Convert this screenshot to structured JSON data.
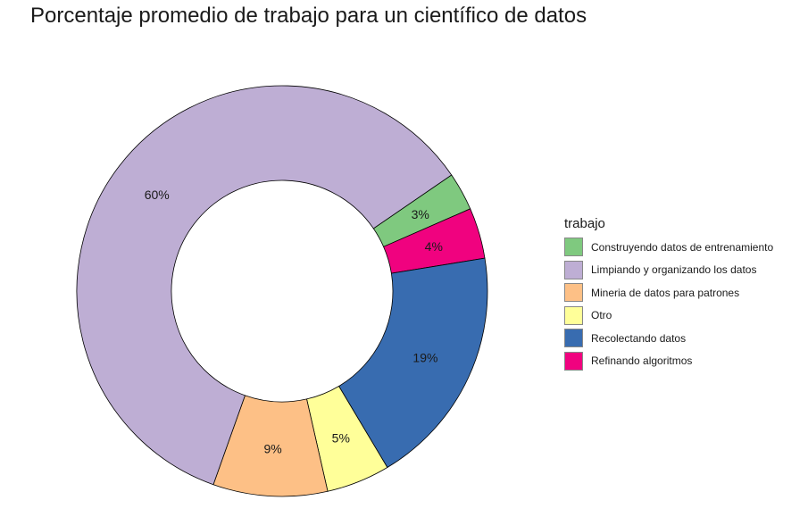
{
  "chart_data": {
    "type": "pie",
    "variant": "donut",
    "title": "Porcentaje promedio de trabajo para un científico de datos",
    "legend_title": "trabajo",
    "legend_position": "right",
    "categories": [
      "Construyendo datos de entrenamiento",
      "Limpiando y organizando los datos",
      "Mineria de datos para patrones",
      "Otro",
      "Recolectando datos",
      "Refinando algoritmos"
    ],
    "values": [
      3,
      60,
      9,
      5,
      19,
      4
    ],
    "labels": [
      "3%",
      "60%",
      "9%",
      "5%",
      "19%",
      "4%"
    ],
    "colors": [
      "#7fc97f",
      "#beaed4",
      "#fdc086",
      "#ffff99",
      "#386cb0",
      "#f0027f"
    ],
    "drawing_order": [
      0,
      5,
      4,
      3,
      2,
      1
    ]
  }
}
